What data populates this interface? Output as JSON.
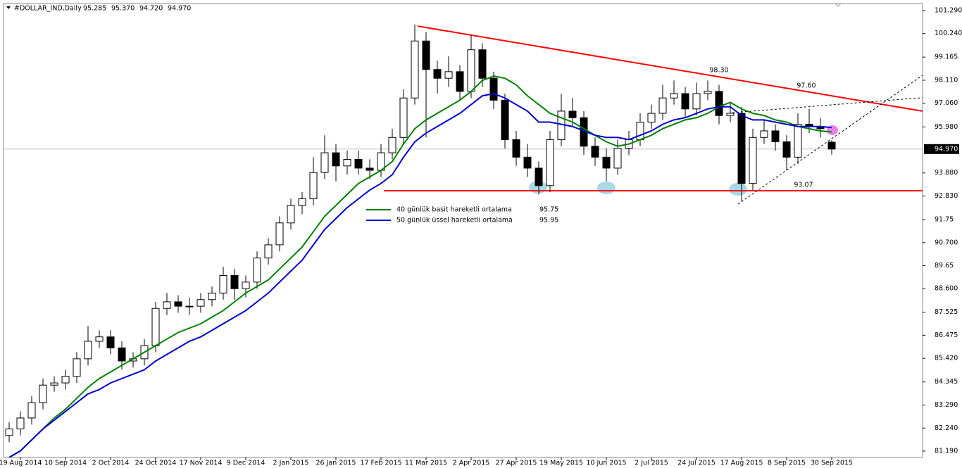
{
  "chart_data": {
    "type": "candlestick",
    "title": "#DOLLAR_IND,Daily",
    "title_values": [
      "95.285",
      "95.370",
      "94.720",
      "94.970"
    ],
    "categories": [
      null,
      "19 Aug 2014",
      null,
      null,
      null,
      "10 Sep 2014",
      null,
      null,
      null,
      "2 Oct 2014",
      null,
      null,
      null,
      "24 Oct 2014",
      null,
      null,
      null,
      "17 Nov 2014",
      null,
      null,
      null,
      "9 Dec 2014",
      null,
      null,
      null,
      "2 Jan 2015",
      null,
      null,
      null,
      "26 Jan 2015",
      null,
      null,
      null,
      "17 Feb 2015",
      null,
      null,
      null,
      "11 Mar 2015",
      null,
      null,
      null,
      "2 Apr 2015",
      null,
      null,
      null,
      "27 Apr 2015",
      null,
      null,
      null,
      "19 May 2015",
      null,
      null,
      null,
      "10 Jun 2015",
      null,
      null,
      null,
      "2 Jul 2015",
      null,
      null,
      null,
      "24 Jul 2015",
      null,
      null,
      null,
      "17 Aug 2015",
      null,
      null,
      null,
      "8 Sep 2015",
      null,
      null,
      null,
      "30 Sep 2015"
    ],
    "open": [
      81.9,
      82.2,
      82.7,
      83.4,
      84.2,
      84.3,
      84.6,
      85.4,
      86.2,
      86.4,
      85.9,
      85.3,
      85.4,
      86.0,
      87.7,
      88.0,
      87.8,
      87.8,
      88.1,
      88.4,
      89.2,
      88.6,
      88.9,
      90.0,
      90.6,
      91.6,
      92.4,
      92.7,
      93.9,
      94.8,
      94.2,
      94.5,
      94.1,
      94.0,
      94.8,
      95.5,
      97.3,
      99.9,
      98.6,
      98.2,
      98.5,
      97.6,
      99.5,
      98.2,
      97.2,
      95.4,
      94.6,
      94.1,
      93.3,
      95.4,
      96.7,
      96.4,
      95.1,
      94.6,
      94.1,
      95.0,
      95.4,
      96.2,
      96.6,
      97.3,
      97.5,
      96.8,
      97.5,
      97.6,
      96.5,
      96.6,
      93.4,
      95.5,
      95.8,
      95.3,
      94.6,
      96.1,
      96.0,
      95.285
    ],
    "high": [
      82.5,
      83.0,
      83.7,
      84.5,
      84.6,
      84.9,
      85.7,
      86.9,
      86.7,
      86.7,
      86.2,
      85.7,
      86.3,
      88.0,
      88.4,
      88.3,
      88.2,
      88.4,
      88.7,
      89.6,
      89.5,
      89.2,
      90.3,
      90.9,
      91.9,
      92.7,
      93.0,
      94.6,
      95.6,
      95.2,
      94.9,
      94.9,
      94.5,
      95.2,
      95.9,
      97.7,
      100.65,
      100.3,
      99.0,
      99.2,
      98.8,
      100.2,
      99.8,
      98.5,
      97.5,
      95.8,
      95.2,
      94.4,
      95.8,
      97.5,
      97.3,
      96.7,
      95.5,
      95.0,
      95.4,
      95.8,
      96.6,
      97.0,
      97.9,
      98.1,
      97.8,
      98.0,
      98.1,
      97.9,
      97.1,
      96.9,
      95.9,
      96.3,
      96.1,
      95.6,
      96.6,
      96.8,
      96.4,
      95.37
    ],
    "low": [
      81.6,
      81.9,
      82.4,
      83.1,
      83.9,
      84.0,
      84.3,
      85.1,
      85.9,
      85.6,
      84.9,
      85.0,
      85.1,
      85.7,
      87.4,
      87.5,
      87.4,
      87.5,
      87.8,
      88.1,
      88.1,
      88.2,
      88.6,
      89.7,
      90.3,
      91.3,
      92.0,
      92.4,
      93.6,
      93.5,
      93.8,
      93.8,
      93.6,
      93.7,
      94.5,
      95.2,
      97.0,
      95.5,
      97.5,
      97.8,
      97.2,
      97.3,
      97.8,
      96.8,
      95.0,
      94.2,
      93.7,
      92.9,
      93.0,
      95.1,
      96.0,
      94.7,
      94.2,
      93.5,
      93.8,
      94.7,
      95.1,
      95.9,
      96.3,
      97.0,
      96.4,
      96.5,
      97.2,
      96.1,
      96.2,
      92.6,
      93.1,
      95.2,
      94.9,
      94.0,
      94.3,
      95.7,
      95.5,
      94.72
    ],
    "close": [
      82.2,
      82.7,
      83.4,
      84.2,
      84.3,
      84.6,
      85.4,
      86.2,
      86.4,
      85.9,
      85.3,
      85.4,
      86.0,
      87.7,
      88.0,
      87.8,
      87.8,
      88.1,
      88.4,
      89.2,
      88.6,
      88.9,
      90.0,
      90.6,
      91.6,
      92.4,
      92.7,
      93.9,
      94.8,
      94.2,
      94.5,
      94.1,
      94.0,
      94.8,
      95.5,
      97.3,
      99.9,
      98.6,
      98.2,
      98.5,
      97.6,
      99.5,
      98.2,
      97.2,
      95.4,
      94.6,
      94.1,
      93.3,
      95.4,
      96.7,
      96.4,
      95.1,
      94.6,
      94.1,
      95.0,
      95.4,
      96.2,
      96.6,
      97.3,
      97.5,
      96.8,
      97.5,
      97.6,
      96.5,
      96.6,
      93.4,
      95.5,
      95.8,
      95.3,
      94.6,
      96.1,
      96.0,
      95.9,
      94.97
    ],
    "series": [
      {
        "name": "40 günlük basit hareketli ortalama",
        "color": "#008000",
        "legend_value": 95.75,
        "values": [
          80.9,
          81.2,
          81.7,
          82.2,
          82.7,
          83.1,
          83.6,
          84.1,
          84.5,
          84.8,
          85.1,
          85.4,
          85.7,
          86.0,
          86.3,
          86.6,
          86.8,
          87.0,
          87.3,
          87.6,
          88.0,
          88.4,
          88.7,
          89.0,
          89.5,
          90.0,
          90.5,
          91.2,
          91.9,
          92.4,
          92.9,
          93.4,
          93.7,
          94.0,
          94.4,
          95.2,
          95.9,
          96.3,
          96.6,
          96.9,
          97.2,
          97.6,
          98.1,
          98.3,
          98.2,
          97.9,
          97.4,
          97.0,
          96.6,
          96.4,
          96.2,
          95.9,
          95.6,
          95.3,
          95.1,
          95.2,
          95.4,
          95.6,
          95.9,
          96.1,
          96.3,
          96.4,
          96.6,
          96.9,
          97.1,
          96.8,
          96.6,
          96.5,
          96.3,
          96.2,
          96.0,
          95.9,
          95.8,
          95.75
        ]
      },
      {
        "name": "50 günlük üssel hareketli ortalama",
        "color": "#0000cd",
        "legend_value": 95.95,
        "values": [
          80.9,
          81.2,
          81.7,
          82.2,
          82.6,
          83.0,
          83.4,
          83.8,
          84.0,
          84.3,
          84.5,
          84.7,
          84.9,
          85.3,
          85.6,
          85.9,
          86.2,
          86.4,
          86.7,
          87.0,
          87.3,
          87.6,
          88.0,
          88.4,
          88.9,
          89.4,
          89.9,
          90.6,
          91.3,
          91.8,
          92.3,
          92.7,
          93.1,
          93.4,
          93.8,
          94.6,
          95.3,
          95.7,
          96.0,
          96.3,
          96.6,
          97.0,
          97.4,
          97.5,
          97.3,
          97.0,
          96.7,
          96.2,
          96.2,
          96.1,
          96.0,
          95.8,
          95.6,
          95.5,
          95.5,
          95.4,
          95.6,
          95.8,
          96.1,
          96.3,
          96.4,
          96.6,
          96.8,
          96.9,
          96.9,
          96.5,
          96.3,
          96.3,
          96.2,
          96.1,
          96.0,
          96.0,
          96.0,
          95.95
        ]
      }
    ],
    "trendlines": [
      {
        "color": "#ff0000",
        "values": [
          100.58,
          96.7
        ]
      },
      {
        "color": "#ff0000",
        "values": [
          93.07,
          93.07
        ]
      }
    ],
    "dashed_lines": [
      {
        "color": "#000000",
        "values": [
          92.46,
          98.56
        ]
      },
      {
        "color": "#000000",
        "values": [
          96.63,
          97.34
        ]
      }
    ],
    "annotations": [
      "98.30",
      "97.60",
      "93.07"
    ],
    "current_price": {
      "value": 94.97,
      "label": "94.970"
    },
    "ylim": [
      80.9,
      101.61
    ],
    "yticks": [
      {
        "value": 101.29,
        "label": "101.290"
      },
      {
        "value": 100.24,
        "label": "100.240"
      },
      99.165,
      {
        "value": 98.11,
        "label": "98.110"
      },
      {
        "value": 97.06,
        "label": "97.060"
      },
      {
        "value": 95.98,
        "label": "95.980"
      },
      {
        "value": 93.88,
        "label": "93.880"
      },
      {
        "value": 92.83,
        "label": "92.830"
      },
      91.75,
      {
        "value": 90.7,
        "label": "90.700"
      },
      89.65,
      {
        "value": 88.6,
        "label": "88.600"
      },
      87.525,
      86.475,
      {
        "value": 85.42,
        "label": "85.420"
      },
      84.345,
      {
        "value": 83.29,
        "label": "83.290"
      },
      {
        "value": 82.24,
        "label": "82.240"
      },
      {
        "value": 81.19,
        "label": "81.190"
      }
    ]
  }
}
